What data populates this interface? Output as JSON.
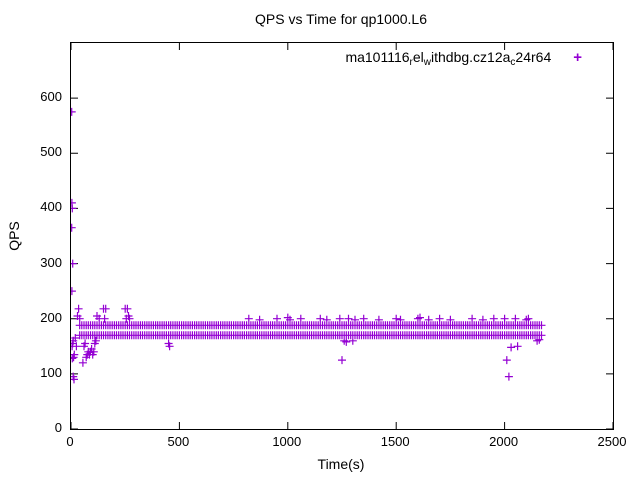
{
  "title": "QPS vs Time for qp1000.L6",
  "axes": {
    "xlabel": "Time(s)",
    "ylabel": "QPS",
    "x_ticks": [
      0,
      500,
      1000,
      1500,
      2000,
      2500
    ],
    "y_ticks": [
      0,
      100,
      200,
      300,
      400,
      500,
      600
    ],
    "xlim": [
      0,
      2500
    ],
    "ylim": [
      0,
      700
    ]
  },
  "legend": {
    "label": "ma101116_rel_withdbg.cz12a_c24r64",
    "segments": [
      {
        "text": "ma101116",
        "sub": false
      },
      {
        "text": "r",
        "sub": true
      },
      {
        "text": "el",
        "sub": false
      },
      {
        "text": "w",
        "sub": true
      },
      {
        "text": "ithdbg.cz12a",
        "sub": false
      },
      {
        "text": "c",
        "sub": true
      },
      {
        "text": "24r64",
        "sub": false
      }
    ],
    "marker": "+"
  },
  "chart_data": {
    "type": "scatter",
    "title": "QPS vs Time for qp1000.L6",
    "xlabel": "Time(s)",
    "ylabel": "QPS",
    "xlim": [
      0,
      2500
    ],
    "ylim": [
      0,
      700
    ],
    "grid": false,
    "legend_position": "top-right-inside",
    "series": [
      {
        "name": "ma101116_rel_withdbg.cz12a_c24r64",
        "color": "#9400D3",
        "marker": "plus",
        "steady_band": {
          "x_start": 40,
          "x_end": 2170,
          "x_step": 10,
          "y_levels": [
            170,
            188
          ]
        },
        "points": [
          [
            3,
            575
          ],
          [
            4,
            410
          ],
          [
            6,
            400
          ],
          [
            3,
            365
          ],
          [
            8,
            300
          ],
          [
            4,
            250
          ],
          [
            5,
            150
          ],
          [
            8,
            155
          ],
          [
            10,
            160
          ],
          [
            12,
            130
          ],
          [
            15,
            135
          ],
          [
            6,
            128
          ],
          [
            10,
            95
          ],
          [
            14,
            90
          ],
          [
            20,
            165
          ],
          [
            25,
            150
          ],
          [
            30,
            205
          ],
          [
            35,
            218
          ],
          [
            40,
            200
          ],
          [
            55,
            120
          ],
          [
            60,
            150
          ],
          [
            65,
            155
          ],
          [
            70,
            130
          ],
          [
            75,
            135
          ],
          [
            80,
            140
          ],
          [
            85,
            135
          ],
          [
            90,
            140
          ],
          [
            95,
            145
          ],
          [
            100,
            135
          ],
          [
            105,
            140
          ],
          [
            110,
            155
          ],
          [
            115,
            160
          ],
          [
            120,
            205
          ],
          [
            130,
            200
          ],
          [
            150,
            218
          ],
          [
            155,
            200
          ],
          [
            160,
            218
          ],
          [
            250,
            218
          ],
          [
            255,
            200
          ],
          [
            260,
            218
          ],
          [
            265,
            205
          ],
          [
            270,
            200
          ],
          [
            450,
            155
          ],
          [
            455,
            150
          ],
          [
            820,
            200
          ],
          [
            870,
            198
          ],
          [
            950,
            200
          ],
          [
            1000,
            202
          ],
          [
            1010,
            198
          ],
          [
            1060,
            200
          ],
          [
            1150,
            200
          ],
          [
            1180,
            198
          ],
          [
            1240,
            200
          ],
          [
            1250,
            125
          ],
          [
            1260,
            160
          ],
          [
            1270,
            158
          ],
          [
            1280,
            200
          ],
          [
            1300,
            160
          ],
          [
            1310,
            198
          ],
          [
            1350,
            200
          ],
          [
            1420,
            198
          ],
          [
            1500,
            200
          ],
          [
            1520,
            198
          ],
          [
            1600,
            200
          ],
          [
            1610,
            202
          ],
          [
            1650,
            198
          ],
          [
            1700,
            200
          ],
          [
            1750,
            198
          ],
          [
            1850,
            200
          ],
          [
            1900,
            198
          ],
          [
            1950,
            200
          ],
          [
            2000,
            200
          ],
          [
            2010,
            125
          ],
          [
            2020,
            95
          ],
          [
            2030,
            148
          ],
          [
            2050,
            200
          ],
          [
            2060,
            150
          ],
          [
            2100,
            198
          ],
          [
            2110,
            200
          ],
          [
            2150,
            160
          ],
          [
            2160,
            162
          ]
        ]
      }
    ]
  }
}
